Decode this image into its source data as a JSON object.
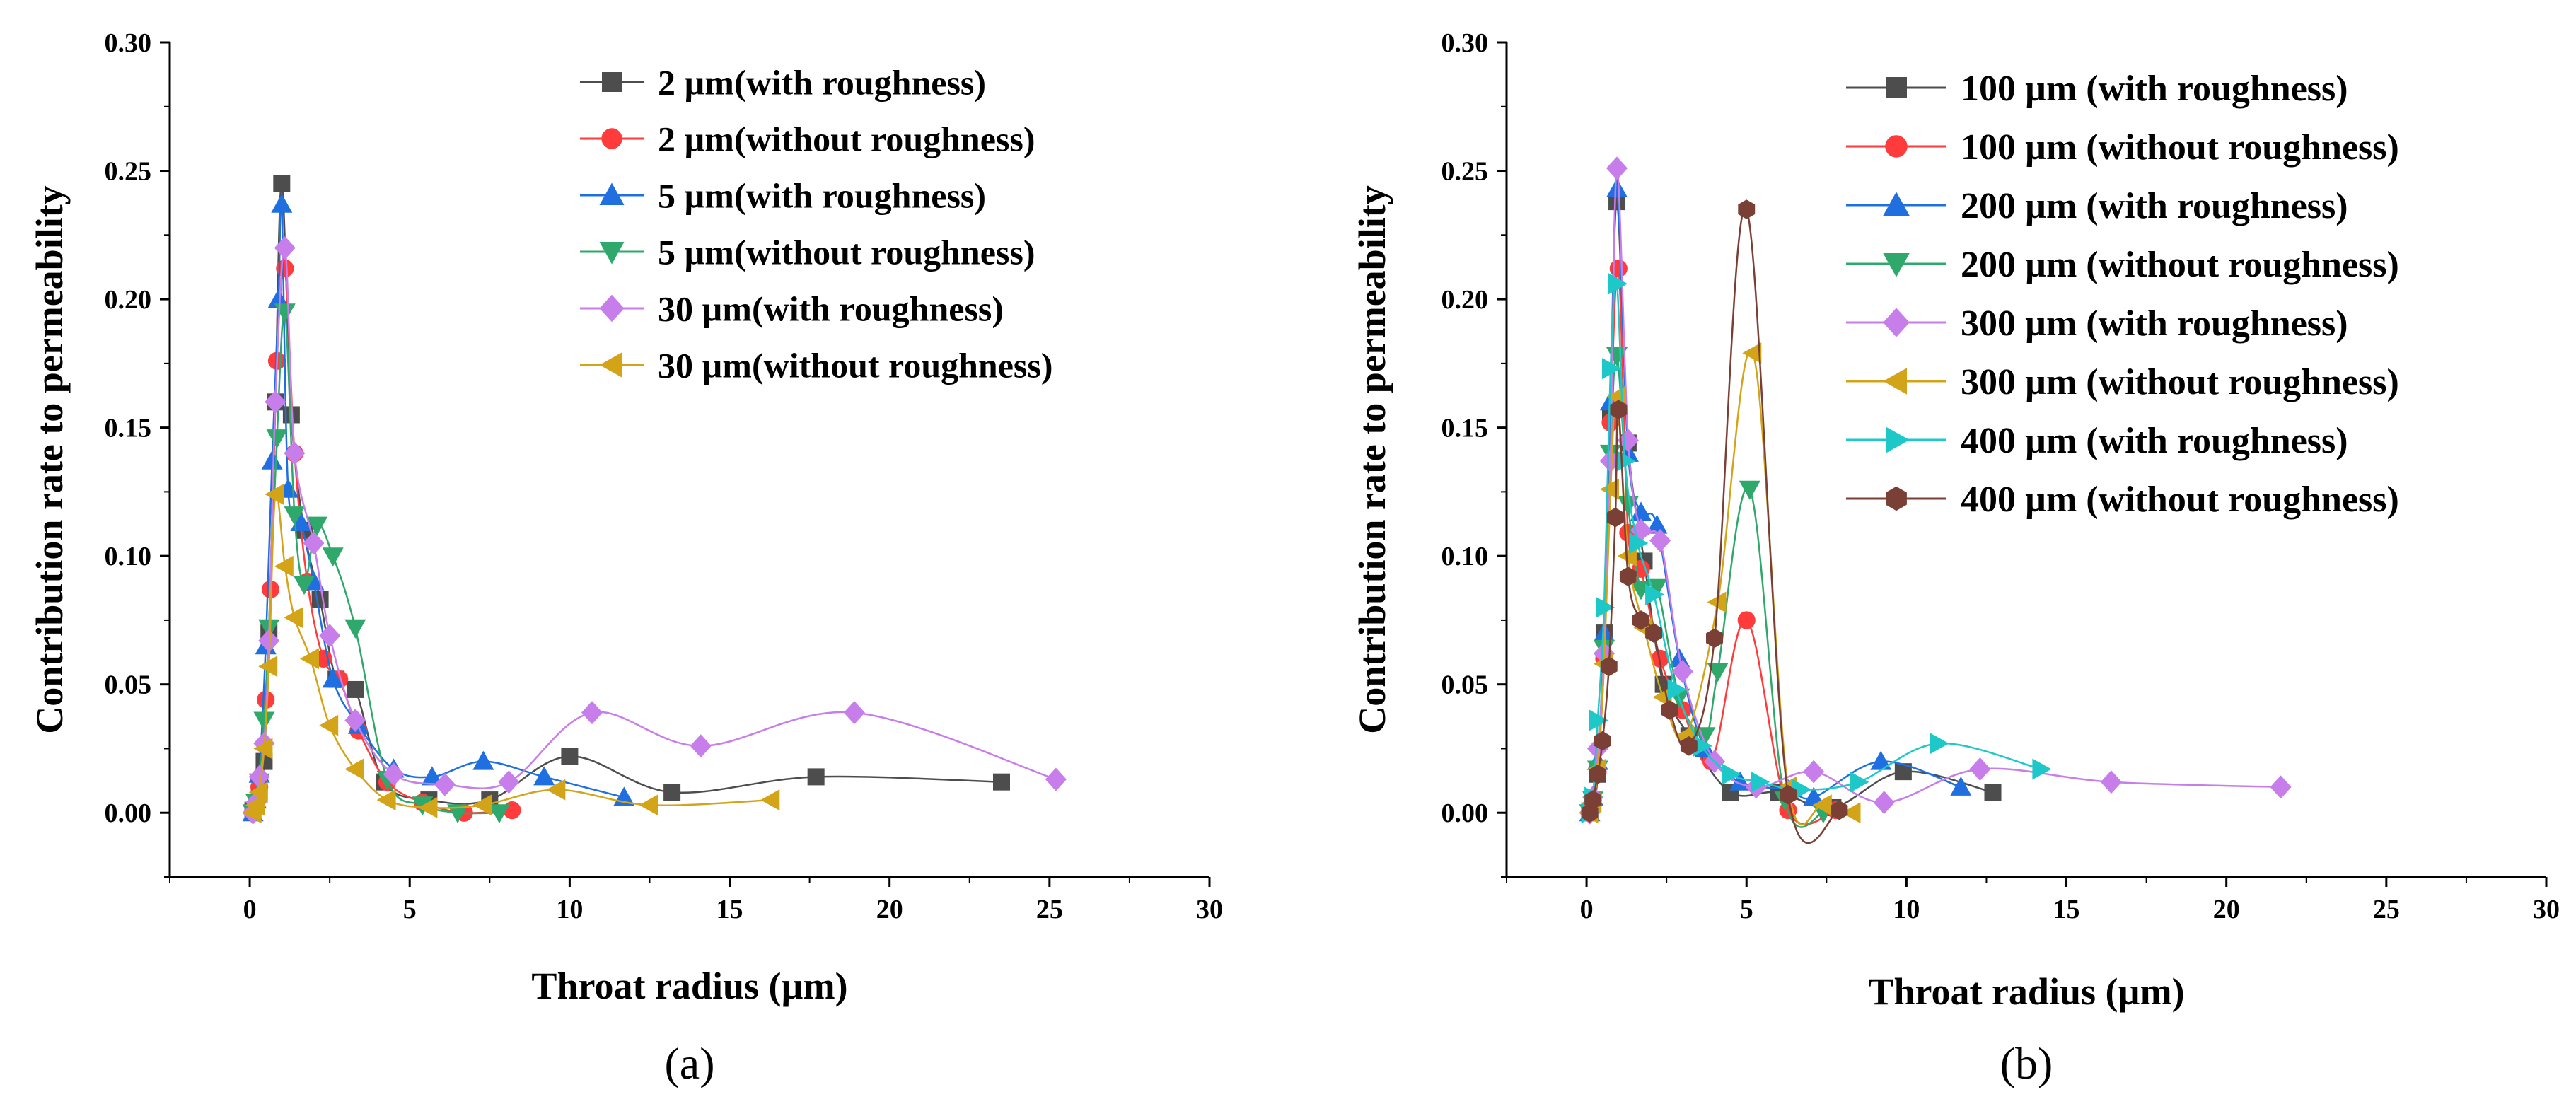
{
  "chart_data": [
    {
      "type": "line",
      "panel_label": "(a)",
      "xlabel": "Throat radius (µm)",
      "ylabel": "Contribution rate to permeability",
      "xlim": [
        -2.5,
        30
      ],
      "ylim": [
        -0.025,
        0.3
      ],
      "xticks": [
        "0",
        "5",
        "10",
        "15",
        "20",
        "25",
        "30"
      ],
      "yticks": [
        "0.00",
        "0.05",
        "0.10",
        "0.15",
        "0.20",
        "0.25",
        "0.30"
      ],
      "legend_position": "top-right",
      "series": [
        {
          "name": "2 µm(with roughness)",
          "color": "#4d4d4d",
          "marker": "square",
          "x": [
            0.1,
            0.2,
            0.3,
            0.45,
            0.6,
            0.8,
            1.0,
            1.3,
            1.7,
            2.2,
            2.7,
            3.3,
            4.2,
            5.6,
            7.5,
            10.0,
            13.2,
            17.7,
            23.5
          ],
          "y": [
            0.001,
            0.003,
            0.008,
            0.02,
            0.07,
            0.16,
            0.245,
            0.155,
            0.11,
            0.083,
            0.052,
            0.048,
            0.012,
            0.005,
            0.005,
            0.022,
            0.008,
            0.014,
            0.012
          ]
        },
        {
          "name": "2 µm(without roughness)",
          "color": "#ff3b3b",
          "marker": "circle",
          "x": [
            0.1,
            0.2,
            0.3,
            0.5,
            0.65,
            0.85,
            1.1,
            1.4,
            1.8,
            2.3,
            2.8,
            3.4,
            4.3,
            5.4,
            6.7,
            8.2
          ],
          "y": [
            0.0,
            0.003,
            0.01,
            0.044,
            0.087,
            0.176,
            0.212,
            0.14,
            0.09,
            0.06,
            0.052,
            0.032,
            0.012,
            0.004,
            0.0,
            0.001
          ]
        },
        {
          "name": "5 µm(with roughness)",
          "color": "#1f6fe0",
          "marker": "triangle-up",
          "x": [
            0.1,
            0.2,
            0.3,
            0.5,
            0.7,
            0.9,
            1.0,
            1.2,
            1.6,
            2.0,
            2.6,
            3.4,
            4.5,
            5.7,
            7.3,
            9.2,
            11.7
          ],
          "y": [
            0.0,
            0.005,
            0.015,
            0.065,
            0.137,
            0.2,
            0.237,
            0.126,
            0.113,
            0.09,
            0.052,
            0.034,
            0.017,
            0.014,
            0.02,
            0.014,
            0.006
          ]
        },
        {
          "name": "5 µm(without roughness)",
          "color": "#2fa86b",
          "marker": "triangle-down",
          "x": [
            0.1,
            0.2,
            0.3,
            0.45,
            0.6,
            0.85,
            1.1,
            1.4,
            1.7,
            2.1,
            2.6,
            3.3,
            4.3,
            5.4,
            6.5,
            7.8
          ],
          "y": [
            0.0,
            0.004,
            0.012,
            0.036,
            0.072,
            0.146,
            0.195,
            0.116,
            0.089,
            0.112,
            0.1,
            0.072,
            0.013,
            0.003,
            0.0,
            0.0
          ]
        },
        {
          "name": "30 µm(with roughness)",
          "color": "#c77dea",
          "marker": "diamond",
          "x": [
            0.1,
            0.2,
            0.3,
            0.45,
            0.6,
            0.8,
            1.1,
            1.4,
            2.0,
            2.5,
            3.3,
            4.5,
            6.1,
            8.1,
            10.7,
            14.1,
            18.9,
            25.2
          ],
          "y": [
            0.0,
            0.004,
            0.014,
            0.027,
            0.067,
            0.16,
            0.22,
            0.14,
            0.105,
            0.069,
            0.036,
            0.015,
            0.011,
            0.012,
            0.039,
            0.026,
            0.039,
            0.013
          ]
        },
        {
          "name": "30 µm(without roughness)",
          "color": "#d4a418",
          "marker": "triangle-left",
          "x": [
            0.1,
            0.2,
            0.3,
            0.45,
            0.6,
            0.8,
            1.1,
            1.4,
            1.9,
            2.5,
            3.3,
            4.3,
            5.6,
            7.3,
            9.6,
            12.5,
            16.3
          ],
          "y": [
            0.0,
            0.003,
            0.008,
            0.025,
            0.057,
            0.124,
            0.096,
            0.076,
            0.06,
            0.034,
            0.017,
            0.005,
            0.002,
            0.003,
            0.009,
            0.003,
            0.005
          ]
        }
      ]
    },
    {
      "type": "line",
      "panel_label": "(b)",
      "xlabel": "Throat radius (µm)",
      "ylabel": "Contribution rate to permeability",
      "xlim": [
        -2.5,
        30
      ],
      "ylim": [
        -0.025,
        0.3
      ],
      "xticks": [
        "0",
        "5",
        "10",
        "15",
        "20",
        "25",
        "30"
      ],
      "yticks": [
        "0.00",
        "0.05",
        "0.10",
        "0.15",
        "0.20",
        "0.25",
        "0.30"
      ],
      "legend_position": "top-right",
      "series": [
        {
          "name": "100 µm (with roughness)",
          "color": "#4d4d4d",
          "marker": "square",
          "x": [
            0.1,
            0.2,
            0.35,
            0.55,
            0.75,
            0.95,
            1.3,
            1.8,
            2.4,
            3.2,
            4.5,
            6.0,
            7.7,
            9.9,
            12.7
          ],
          "y": [
            0.0,
            0.004,
            0.015,
            0.07,
            0.155,
            0.238,
            0.144,
            0.098,
            0.05,
            0.03,
            0.008,
            0.008,
            0.002,
            0.016,
            0.008
          ]
        },
        {
          "name": "100 µm (without roughness)",
          "color": "#ff3b3b",
          "marker": "circle",
          "x": [
            0.1,
            0.2,
            0.35,
            0.55,
            0.75,
            1.0,
            1.3,
            1.7,
            2.3,
            3.0,
            3.9,
            5.0,
            6.3,
            7.8
          ],
          "y": [
            0.0,
            0.005,
            0.016,
            0.06,
            0.152,
            0.212,
            0.109,
            0.095,
            0.06,
            0.04,
            0.02,
            0.075,
            0.001,
            0.001
          ]
        },
        {
          "name": "200 µm (with roughness)",
          "color": "#1f6fe0",
          "marker": "triangle-up",
          "x": [
            0.1,
            0.2,
            0.35,
            0.55,
            0.75,
            0.95,
            1.3,
            1.7,
            2.2,
            2.9,
            3.7,
            4.8,
            6.3,
            7.1,
            9.2,
            11.7
          ],
          "y": [
            0.0,
            0.006,
            0.02,
            0.07,
            0.16,
            0.243,
            0.14,
            0.117,
            0.112,
            0.06,
            0.025,
            0.012,
            0.009,
            0.006,
            0.02,
            0.01
          ]
        },
        {
          "name": "200 µm (without roughness)",
          "color": "#2fa86b",
          "marker": "triangle-down",
          "x": [
            0.1,
            0.2,
            0.35,
            0.55,
            0.75,
            0.95,
            1.3,
            1.7,
            2.2,
            2.9,
            3.7,
            4.1,
            5.1,
            6.2,
            7.4
          ],
          "y": [
            0.0,
            0.005,
            0.017,
            0.064,
            0.14,
            0.178,
            0.12,
            0.087,
            0.088,
            0.045,
            0.03,
            0.055,
            0.126,
            0.005,
            0.0
          ]
        },
        {
          "name": "300 µm (with roughness)",
          "color": "#c77dea",
          "marker": "diamond",
          "x": [
            0.1,
            0.2,
            0.35,
            0.55,
            0.75,
            0.95,
            1.3,
            1.7,
            2.3,
            3.0,
            4.0,
            5.3,
            7.1,
            9.3,
            12.3,
            16.4,
            21.7
          ],
          "y": [
            0.0,
            0.006,
            0.025,
            0.062,
            0.137,
            0.251,
            0.145,
            0.11,
            0.106,
            0.055,
            0.02,
            0.01,
            0.016,
            0.004,
            0.017,
            0.012,
            0.01
          ]
        },
        {
          "name": "300 µm (without roughness)",
          "color": "#d4a418",
          "marker": "triangle-left",
          "x": [
            0.1,
            0.2,
            0.35,
            0.55,
            0.75,
            0.95,
            1.3,
            1.8,
            2.4,
            3.1,
            4.1,
            5.2,
            6.3,
            7.4,
            8.3
          ],
          "y": [
            0.0,
            0.004,
            0.017,
            0.058,
            0.126,
            0.162,
            0.1,
            0.072,
            0.045,
            0.03,
            0.082,
            0.179,
            0.01,
            0.003,
            0.0
          ]
        },
        {
          "name": "400 µm (with roughness)",
          "color": "#1fc8c8",
          "marker": "triangle-right",
          "x": [
            0.1,
            0.2,
            0.35,
            0.55,
            0.75,
            0.95,
            1.2,
            1.6,
            2.1,
            2.8,
            3.6,
            4.5,
            5.4,
            6.7,
            8.5,
            11.0,
            14.2
          ],
          "y": [
            0.0,
            0.006,
            0.036,
            0.08,
            0.173,
            0.206,
            0.137,
            0.105,
            0.085,
            0.048,
            0.026,
            0.015,
            0.012,
            0.009,
            0.012,
            0.027,
            0.017
          ]
        },
        {
          "name": "400 µm (without roughness)",
          "color": "#7a3f35",
          "marker": "hexagon",
          "x": [
            0.1,
            0.2,
            0.35,
            0.5,
            0.7,
            0.9,
            1.0,
            1.3,
            1.7,
            2.1,
            2.6,
            3.2,
            4.0,
            5.0,
            6.3,
            7.9
          ],
          "y": [
            0.0,
            0.005,
            0.015,
            0.028,
            0.057,
            0.115,
            0.157,
            0.092,
            0.075,
            0.07,
            0.04,
            0.026,
            0.068,
            0.235,
            0.007,
            0.001
          ]
        }
      ]
    }
  ]
}
